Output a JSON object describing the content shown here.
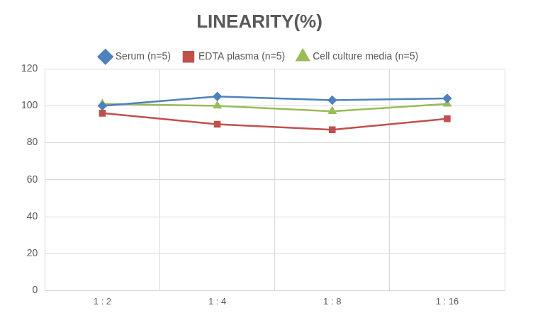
{
  "chart_data": {
    "type": "line",
    "title": "LINEARITY(%)",
    "categories": [
      "1 : 2",
      "1 : 4",
      "1 : 8",
      "1 : 16"
    ],
    "series": [
      {
        "name": "Serum (n=5)",
        "color": "#4f81bd",
        "marker": "diamond",
        "values": [
          100,
          105,
          103,
          104
        ]
      },
      {
        "name": "EDTA plasma (n=5)",
        "color": "#c0504d",
        "marker": "square",
        "values": [
          96,
          90,
          87,
          93
        ]
      },
      {
        "name": "Cell culture media (n=5)",
        "color": "#9bbb59",
        "marker": "triangle",
        "values": [
          101,
          100,
          97,
          101
        ]
      }
    ],
    "ylim": [
      0,
      120
    ],
    "yticks": [
      0,
      20,
      40,
      60,
      80,
      100,
      120
    ],
    "grid": true,
    "legend": "top"
  }
}
